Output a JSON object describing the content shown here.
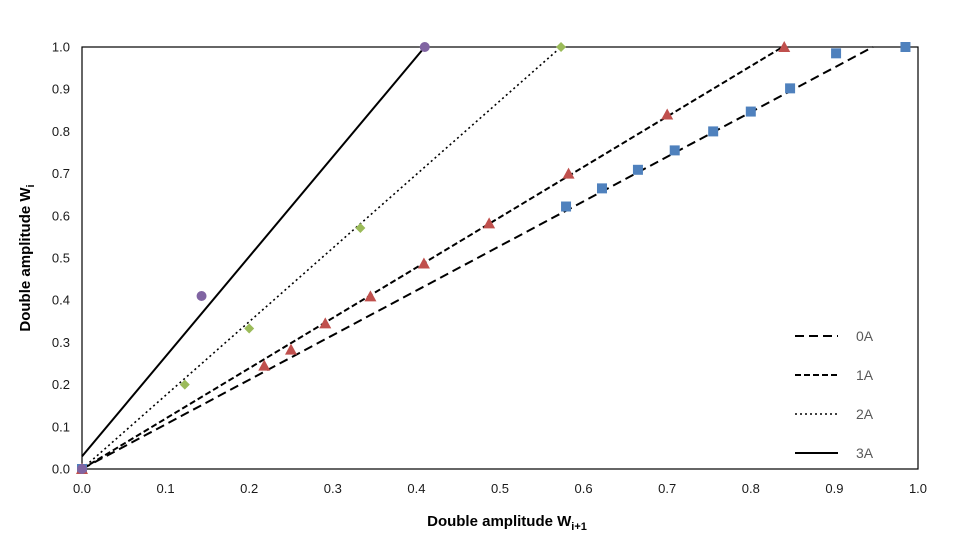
{
  "chart_data": {
    "type": "scatter",
    "xlabel": "Double amplitude W",
    "xlabel_sub": "i+1",
    "ylabel": "Double amplitude W",
    "ylabel_sub": "i",
    "xlim": [
      0,
      1
    ],
    "ylim": [
      0,
      1
    ],
    "xticks": [
      "0.0",
      "0.1",
      "0.2",
      "0.3",
      "0.4",
      "0.5",
      "0.6",
      "0.7",
      "0.8",
      "0.9",
      "1.0"
    ],
    "yticks": [
      "0.0",
      "0.1",
      "0.2",
      "0.3",
      "0.4",
      "0.5",
      "0.6",
      "0.7",
      "0.8",
      "0.9",
      "1.0"
    ],
    "grid": false,
    "legend_position": "bottom-right",
    "series": [
      {
        "name": "0A",
        "marker": "square",
        "marker_color": "#4f81bd",
        "line_style": "dashed-long",
        "fit_line": [
          [
            0,
            0
          ],
          [
            0.946,
            1.0
          ]
        ],
        "points": [
          [
            0,
            0
          ],
          [
            0.579,
            0.622
          ],
          [
            0.622,
            0.665
          ],
          [
            0.665,
            0.709
          ],
          [
            0.709,
            0.755
          ],
          [
            0.755,
            0.8
          ],
          [
            0.8,
            0.847
          ],
          [
            0.847,
            0.902
          ],
          [
            0.902,
            0.985
          ],
          [
            0.985,
            1.0
          ]
        ]
      },
      {
        "name": "1A",
        "marker": "triangle",
        "marker_color": "#c0504d",
        "line_style": "dashed-short",
        "fit_line": [
          [
            0,
            0
          ],
          [
            0.838,
            1.0
          ]
        ],
        "points": [
          [
            0,
            0
          ],
          [
            0.218,
            0.245
          ],
          [
            0.25,
            0.283
          ],
          [
            0.291,
            0.345
          ],
          [
            0.345,
            0.409
          ],
          [
            0.409,
            0.487
          ],
          [
            0.487,
            0.582
          ],
          [
            0.582,
            0.7
          ],
          [
            0.7,
            0.84
          ],
          [
            0.84,
            1.0
          ]
        ]
      },
      {
        "name": "2A",
        "marker": "diamond",
        "marker_color": "#9bbb59",
        "line_style": "dotted",
        "fit_line": [
          [
            0,
            0
          ],
          [
            0.573,
            1.0
          ]
        ],
        "points": [
          [
            0,
            0
          ],
          [
            0.123,
            0.2
          ],
          [
            0.2,
            0.333
          ],
          [
            0.333,
            0.571
          ],
          [
            0.573,
            1.0
          ]
        ]
      },
      {
        "name": "3A",
        "marker": "circle",
        "marker_color": "#8064a2",
        "line_style": "solid",
        "fit_line": [
          [
            0,
            0.03
          ],
          [
            0.41,
            1.0
          ]
        ],
        "points": [
          [
            0,
            0
          ],
          [
            0.143,
            0.41
          ],
          [
            0.41,
            1.0
          ]
        ]
      }
    ]
  }
}
